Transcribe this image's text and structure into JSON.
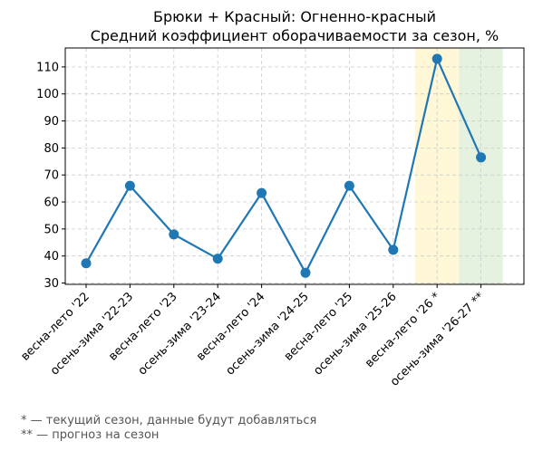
{
  "chart_data": {
    "type": "line",
    "title_line1": "Брюки + Красный: Огненно-красный",
    "title_line2": "Средний коэффициент оборачиваемости за сезон, %",
    "categories": [
      "весна-лето '22",
      "осень-зима '22-23",
      "весна-лето '23",
      "осень-зима '23-24",
      "весна-лето '24",
      "осень-зима '24-25",
      "весна-лето '25",
      "осень-зима '25-26",
      "весна-лето '26 *",
      "осень-зима '26-27 **"
    ],
    "series": [
      {
        "values": [
          37.3,
          66.0,
          48.0,
          39.0,
          63.3,
          33.8,
          66.0,
          42.3,
          113.0,
          76.5
        ]
      }
    ],
    "ylim": [
      29.5,
      117
    ],
    "yticks": [
      30,
      40,
      50,
      60,
      70,
      80,
      90,
      100,
      110
    ],
    "grid": true,
    "highlight_current_index": 8,
    "highlight_forecast_index": 9,
    "colors": {
      "line": "#1f77b4",
      "current_band": "#fff7d6",
      "forecast_band": "#e6f2e0",
      "grid": "#cccccc"
    }
  },
  "footnotes": {
    "current": "* — текущий сезон, данные будут добавляться",
    "forecast": "** — прогноз на сезон"
  }
}
